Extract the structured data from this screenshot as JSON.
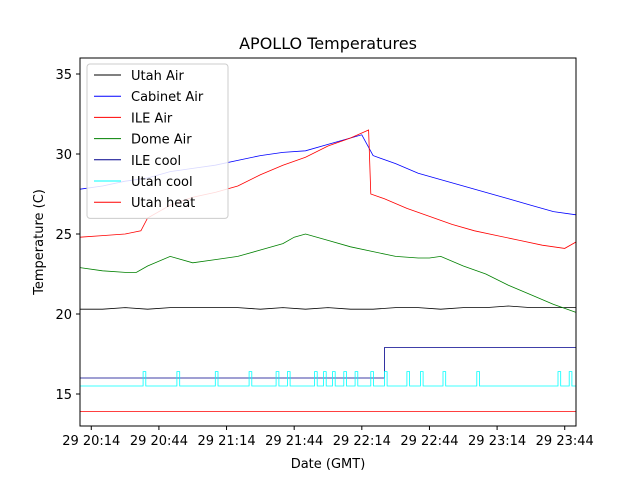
{
  "chart_data": {
    "type": "line",
    "title": "APOLLO Temperatures",
    "xlabel": "Date (GMT)",
    "ylabel": "Temperature (C)",
    "xlim_minutes": [
      0,
      220
    ],
    "ylim": [
      13,
      36
    ],
    "x_ticks": [
      {
        "minute": 5,
        "label": "29 20:14"
      },
      {
        "minute": 35,
        "label": "29 20:44"
      },
      {
        "minute": 65,
        "label": "29 21:14"
      },
      {
        "minute": 95,
        "label": "29 21:44"
      },
      {
        "minute": 125,
        "label": "29 22:14"
      },
      {
        "minute": 155,
        "label": "29 22:44"
      },
      {
        "minute": 185,
        "label": "29 23:14"
      },
      {
        "minute": 215,
        "label": "29 23:44"
      }
    ],
    "y_ticks": [
      15,
      20,
      25,
      30,
      35
    ],
    "legend_position": "top-left",
    "series": [
      {
        "name": "Utah Air",
        "color": "#000000",
        "x": [
          0,
          10,
          20,
          30,
          40,
          50,
          60,
          70,
          80,
          90,
          100,
          110,
          120,
          130,
          140,
          150,
          160,
          170,
          180,
          190,
          200,
          210,
          220
        ],
        "y": [
          20.3,
          20.3,
          20.4,
          20.3,
          20.4,
          20.4,
          20.4,
          20.4,
          20.3,
          20.4,
          20.3,
          20.4,
          20.3,
          20.3,
          20.4,
          20.4,
          20.3,
          20.4,
          20.4,
          20.5,
          20.4,
          20.4,
          20.4
        ]
      },
      {
        "name": "Cabinet Air",
        "color": "#0000ff",
        "x": [
          0,
          10,
          20,
          30,
          40,
          50,
          60,
          70,
          80,
          90,
          100,
          110,
          120,
          125,
          130,
          140,
          150,
          160,
          170,
          180,
          190,
          200,
          210,
          220
        ],
        "y": [
          27.8,
          28.0,
          28.3,
          28.5,
          28.9,
          29.1,
          29.3,
          29.6,
          29.9,
          30.1,
          30.2,
          30.6,
          31.0,
          31.2,
          29.9,
          29.4,
          28.8,
          28.4,
          28.0,
          27.6,
          27.2,
          26.8,
          26.4,
          26.2
        ]
      },
      {
        "name": "ILE Air",
        "color": "#ff0000",
        "x": [
          0,
          10,
          20,
          27,
          30,
          40,
          50,
          60,
          70,
          80,
          90,
          100,
          110,
          120,
          128,
          129,
          135,
          145,
          155,
          165,
          175,
          185,
          195,
          205,
          215,
          220
        ],
        "y": [
          24.8,
          24.9,
          25.0,
          25.2,
          26.0,
          26.8,
          27.3,
          27.6,
          28.0,
          28.7,
          29.3,
          29.8,
          30.5,
          31.0,
          31.5,
          27.5,
          27.2,
          26.6,
          26.1,
          25.6,
          25.2,
          24.9,
          24.6,
          24.3,
          24.1,
          24.5
        ]
      },
      {
        "name": "Dome Air",
        "color": "#008000",
        "x": [
          0,
          10,
          20,
          25,
          30,
          40,
          50,
          60,
          70,
          80,
          90,
          95,
          100,
          110,
          120,
          130,
          140,
          150,
          155,
          160,
          170,
          180,
          190,
          200,
          210,
          220
        ],
        "y": [
          22.9,
          22.7,
          22.6,
          22.6,
          23.0,
          23.6,
          23.2,
          23.4,
          23.6,
          24.0,
          24.4,
          24.8,
          25.0,
          24.6,
          24.2,
          23.9,
          23.6,
          23.5,
          23.5,
          23.6,
          23.0,
          22.5,
          21.8,
          21.2,
          20.6,
          20.1
        ]
      },
      {
        "name": "ILE cool",
        "color": "#00008b",
        "x": [
          0,
          135,
          135,
          220
        ],
        "y": [
          16.0,
          16.0,
          17.9,
          17.9
        ]
      },
      {
        "name": "Utah cool",
        "color": "#00ffff",
        "base": 15.5,
        "high": 16.4,
        "pulses": [
          28,
          43,
          60,
          75,
          87,
          92,
          104,
          108,
          112,
          117,
          122,
          129,
          135,
          145,
          151,
          161,
          176,
          212,
          217
        ]
      },
      {
        "name": "Utah heat",
        "color": "#ff0000",
        "x": [
          0,
          220
        ],
        "y": [
          13.9,
          13.9
        ]
      }
    ]
  }
}
